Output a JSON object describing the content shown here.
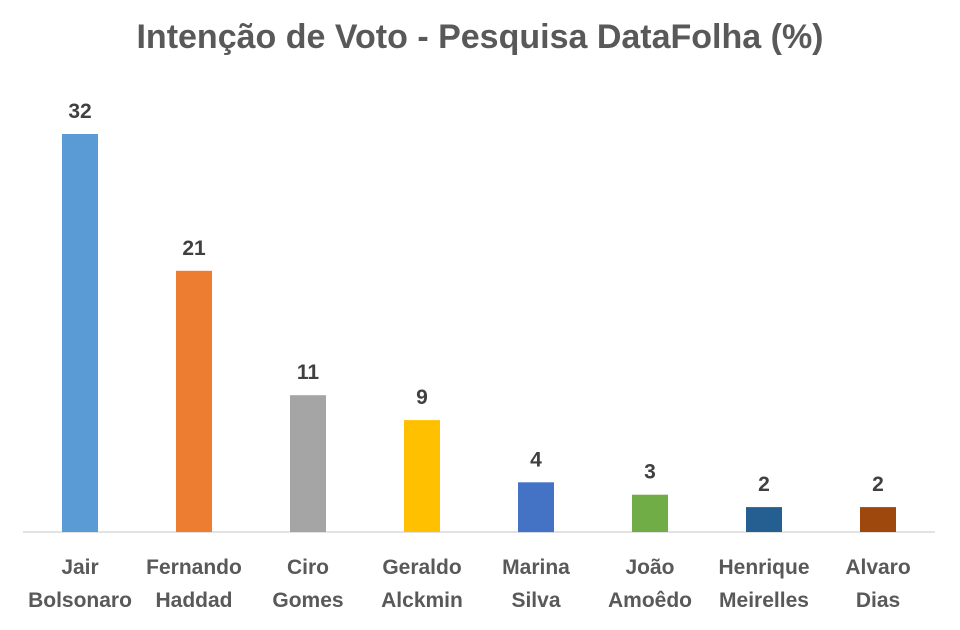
{
  "chart_data": {
    "type": "bar",
    "title": "Intenção de Voto - Pesquisa DataFolha (%)",
    "categories": [
      [
        "Jair",
        "Bolsonaro"
      ],
      [
        "Fernando",
        "Haddad"
      ],
      [
        "Ciro",
        "Gomes"
      ],
      [
        "Geraldo",
        "Alckmin"
      ],
      [
        "Marina",
        "Silva"
      ],
      [
        "João",
        "Amoêdo"
      ],
      [
        "Henrique",
        "Meirelles"
      ],
      [
        "Alvaro",
        "Dias"
      ]
    ],
    "values": [
      32,
      21,
      11,
      9,
      4,
      3,
      2,
      2
    ],
    "colors": [
      "#5B9BD5",
      "#ED7D31",
      "#A5A5A5",
      "#FFC000",
      "#4472C4",
      "#70AD47",
      "#255E91",
      "#9E480E"
    ],
    "ylim": [
      0,
      32
    ],
    "data_labels": true,
    "gridlines": false,
    "legend": "none"
  }
}
